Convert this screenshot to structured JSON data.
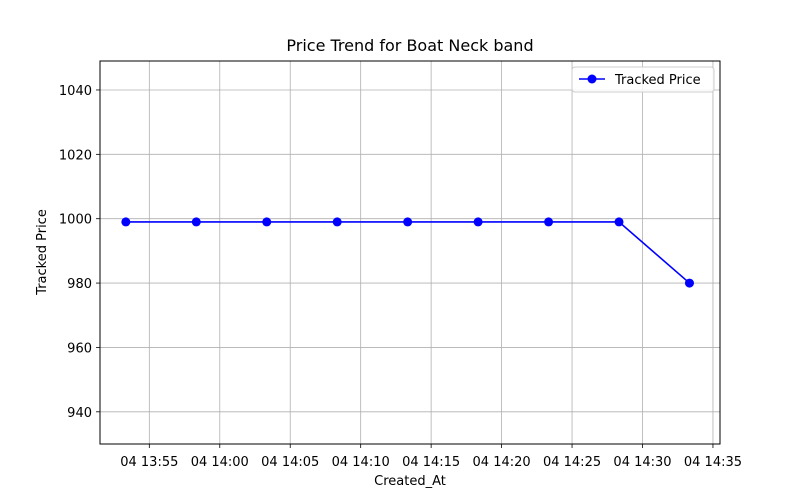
{
  "chart_data": {
    "type": "line",
    "title": "Price Trend for Boat Neck band",
    "xlabel": "Created_At",
    "ylabel": "Tracked Price",
    "x_ticks": [
      "04 13:55",
      "04 14:00",
      "04 14:05",
      "04 14:10",
      "04 14:15",
      "04 14:20",
      "04 14:25",
      "04 14:30",
      "04 14:35"
    ],
    "y_ticks": [
      "940",
      "960",
      "980",
      "1000",
      "1020",
      "1040"
    ],
    "xlim": [
      "04 13:51:30",
      "04 14:35:30"
    ],
    "ylim": [
      930,
      1049
    ],
    "grid": true,
    "legend_position": "top-right",
    "series": [
      {
        "name": "Tracked Price",
        "color": "#0000ff",
        "marker": "circle",
        "x": [
          "04 13:53:20",
          "04 13:58:20",
          "04 14:03:20",
          "04 14:08:20",
          "04 14:13:20",
          "04 14:18:20",
          "04 14:23:20",
          "04 14:28:20",
          "04 14:33:20"
        ],
        "values": [
          999,
          999,
          999,
          999,
          999,
          999,
          999,
          999,
          980
        ]
      }
    ]
  }
}
